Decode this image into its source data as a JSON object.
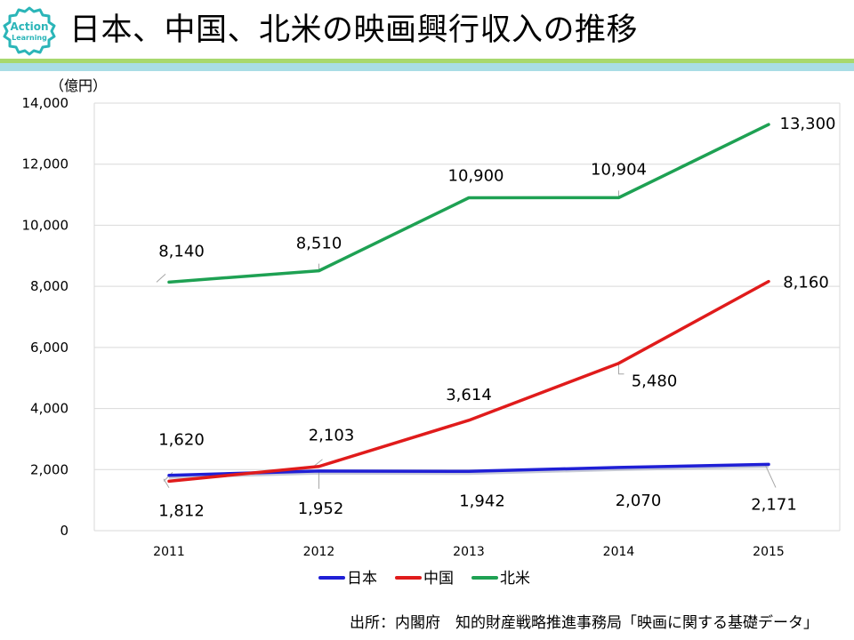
{
  "logo": {
    "line1": "Action",
    "line2": "Learning"
  },
  "slide_title": "日本、中国、北米の映画興行収入の推移",
  "source_text": "出所：内閣府　知的財産戦略推進事務局「映画に関する基礎データ」",
  "colors": {
    "japan": "#1F1FD6",
    "china": "#E01B1B",
    "north_america": "#1EA153",
    "logo": "#2BB5B8",
    "rule_top": "#A8D86E",
    "rule_bottom": "#6FC6D6"
  },
  "chart_data": {
    "type": "line",
    "title": "",
    "unit_label": "（億円）",
    "xlabel": "",
    "ylabel": "億円",
    "categories": [
      "2011",
      "2012",
      "2013",
      "2014",
      "2015"
    ],
    "ylim": [
      0,
      14000
    ],
    "yticks": [
      0,
      2000,
      4000,
      6000,
      8000,
      10000,
      12000,
      14000
    ],
    "ytick_labels": [
      "0",
      "2,000",
      "4,000",
      "6,000",
      "8,000",
      "10,000",
      "12,000",
      "14,000"
    ],
    "grid": true,
    "legend": "bottom-center",
    "series": [
      {
        "name": "日本",
        "key": "japan",
        "values": [
          1812,
          1952,
          1942,
          2070,
          2171
        ],
        "labels": [
          "1,812",
          "1,952",
          "1,942",
          "2,070",
          "2,171"
        ]
      },
      {
        "name": "中国",
        "key": "china",
        "values": [
          1620,
          2103,
          3614,
          5480,
          8160
        ],
        "labels": [
          "1,620",
          "2,103",
          "3,614",
          "5,480",
          "8,160"
        ]
      },
      {
        "name": "北米",
        "key": "north_america",
        "values": [
          8140,
          8510,
          10900,
          10904,
          13300
        ],
        "labels": [
          "8,140",
          "8,510",
          "10,900",
          "10,904",
          "13,300"
        ]
      }
    ]
  }
}
